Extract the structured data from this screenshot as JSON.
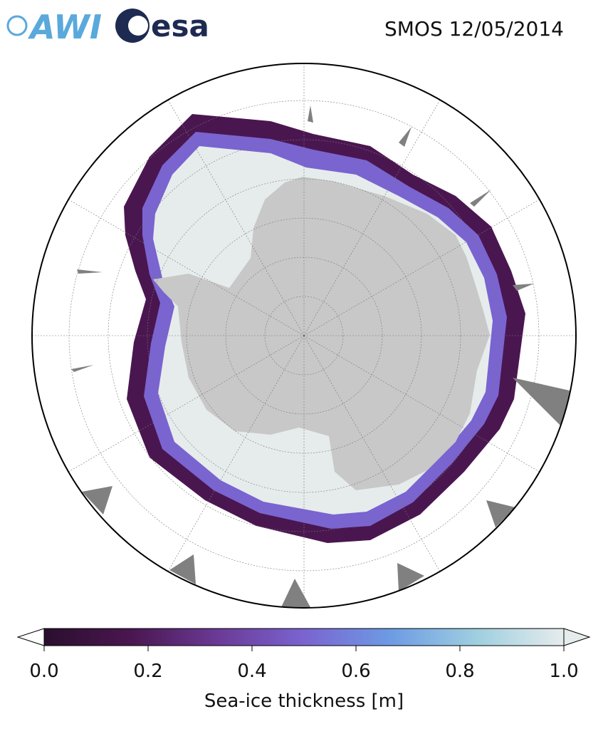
{
  "header": {
    "logos": [
      "AWI",
      "esa"
    ],
    "title": "SMOS 12/05/2014"
  },
  "colorbar": {
    "label": "Sea-ice thickness [m]",
    "lim": [
      0,
      1
    ],
    "ticks": [
      {
        "value": 0,
        "label": "0.0"
      },
      {
        "value": 0.2,
        "label": "0.2"
      },
      {
        "value": 0.4,
        "label": "0.4"
      },
      {
        "value": 0.6,
        "label": "0.6"
      },
      {
        "value": 0.8,
        "label": "0.8"
      },
      {
        "value": 1,
        "label": "1.0"
      }
    ],
    "colors": [
      "#2a0f2e",
      "#4a1650",
      "#6a3a96",
      "#7a64d0",
      "#6d9be4",
      "#9fcfe0",
      "#e6ecec"
    ]
  }
}
